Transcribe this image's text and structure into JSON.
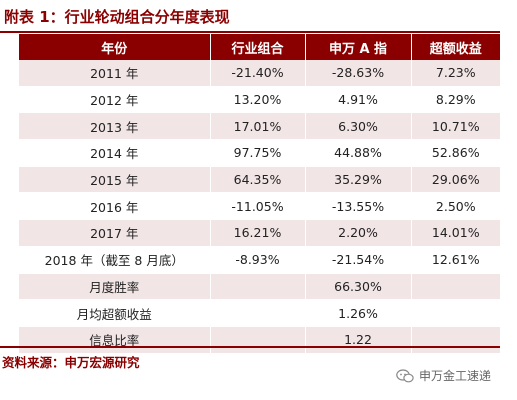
{
  "title": "附表 1：行业轮动组合分年度表现",
  "table": {
    "headers": [
      "年份",
      "行业组合",
      "申万 A 指",
      "超额收益"
    ],
    "rows": [
      [
        "2011 年",
        "-21.40%",
        "-28.63%",
        "7.23%"
      ],
      [
        "2012 年",
        "13.20%",
        "4.91%",
        "8.29%"
      ],
      [
        "2013 年",
        "17.01%",
        "6.30%",
        "10.71%"
      ],
      [
        "2014 年",
        "97.75%",
        "44.88%",
        "52.86%"
      ],
      [
        "2015 年",
        "64.35%",
        "35.29%",
        "29.06%"
      ],
      [
        "2016 年",
        "-11.05%",
        "-13.55%",
        "2.50%"
      ],
      [
        "2017 年",
        "16.21%",
        "2.20%",
        "14.01%"
      ],
      [
        "2018 年（截至 8 月底）",
        "-8.93%",
        "-21.54%",
        "12.61%"
      ],
      [
        "月度胜率",
        "",
        "66.30%",
        ""
      ],
      [
        "月均超额收益",
        "",
        "1.26%",
        ""
      ],
      [
        "信息比率",
        "",
        "1.22",
        ""
      ]
    ]
  },
  "source": "资料来源：申万宏源研究",
  "watermark": {
    "icon": "wechat-icon",
    "text": "申万金工速递"
  },
  "colors": {
    "accent": "#8a0000",
    "row_shade": "#f2e5e6"
  }
}
